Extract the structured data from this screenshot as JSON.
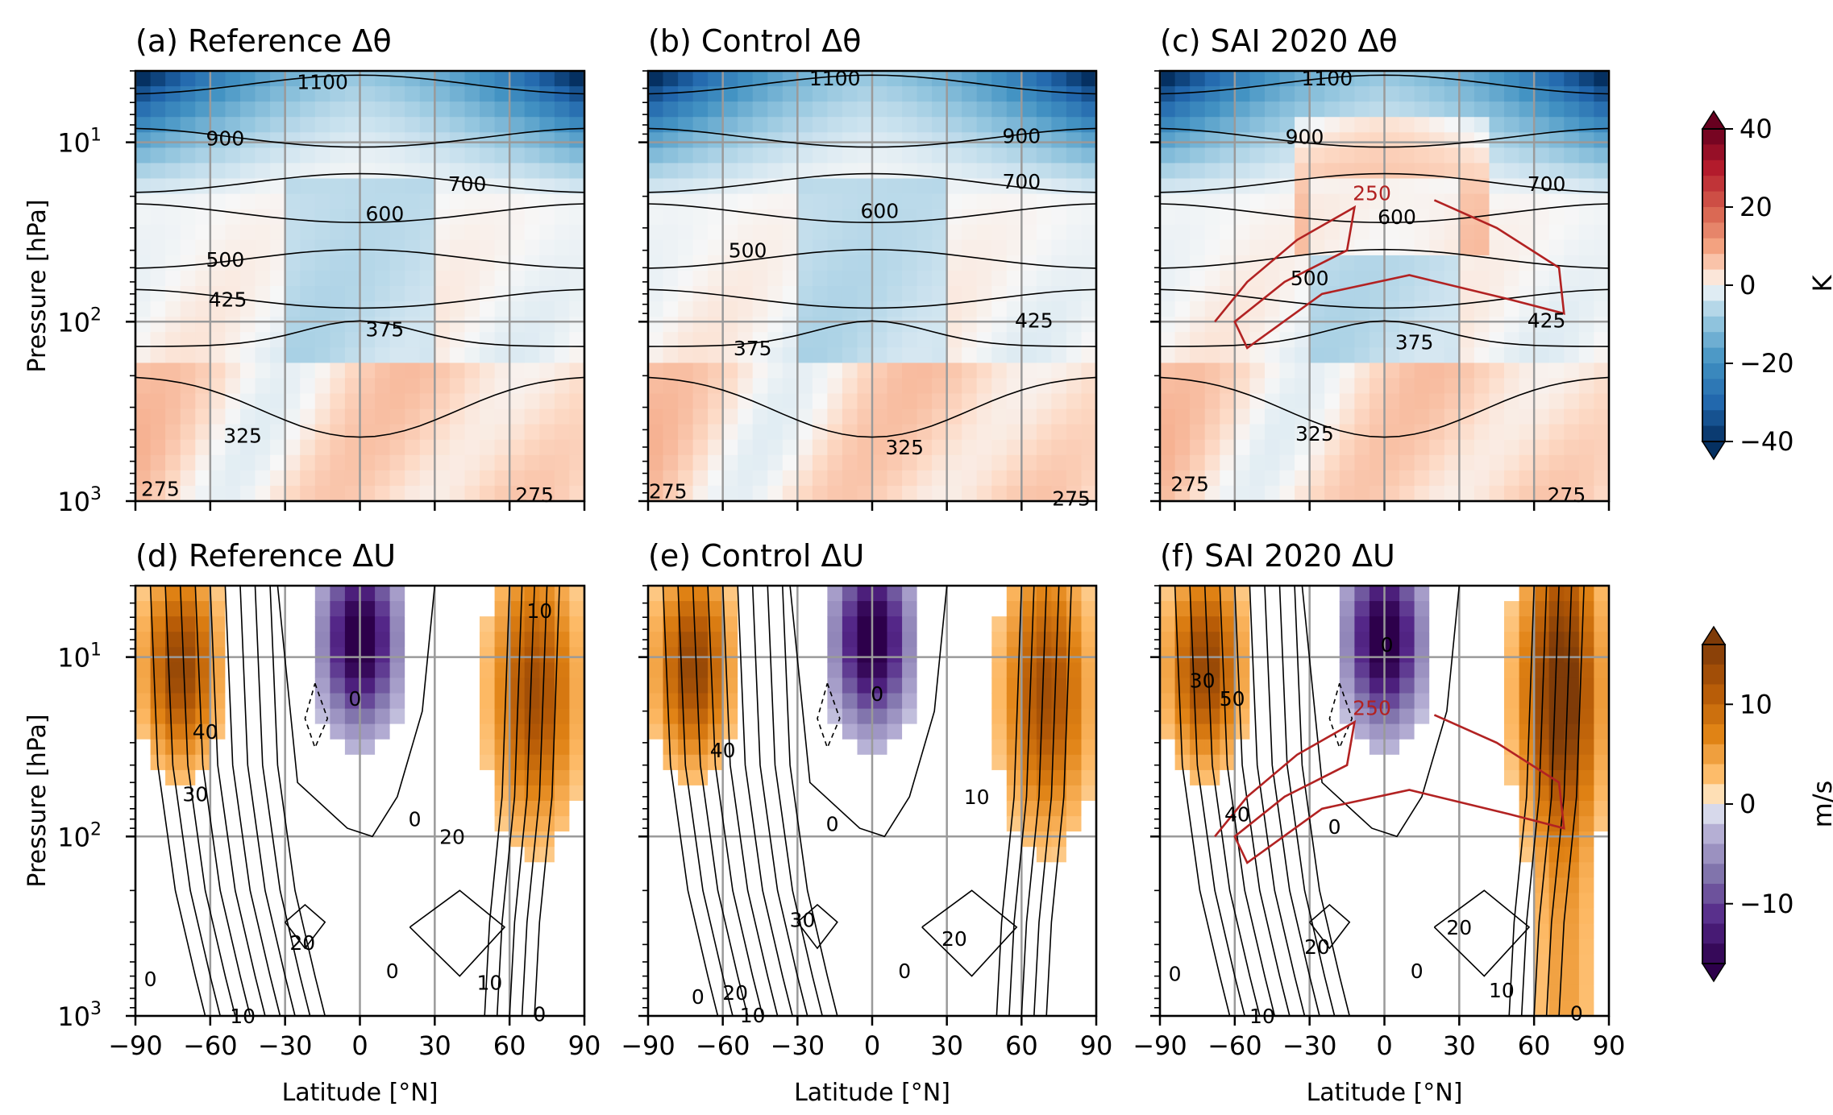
{
  "chart_data": {
    "type": "heatmap",
    "shared": {
      "xlabel": "Latitude [°N]",
      "ylabel": "Pressure [hPa]",
      "xlim": [
        -90,
        90
      ],
      "ylim": [
        1000,
        4
      ],
      "yscale": "log",
      "x_ticks": [
        -90,
        -60,
        -30,
        0,
        30,
        60,
        90
      ],
      "x_tick_labels": [
        "−90",
        "−60",
        "−30",
        "0",
        "30",
        "60",
        "90"
      ],
      "y_ticks": [
        10,
        100,
        1000
      ],
      "y_tick_labels": [
        {
          "base": "10",
          "exp": "1"
        },
        {
          "base": "10",
          "exp": "2"
        },
        {
          "base": "10",
          "exp": "3"
        }
      ],
      "grid": true
    },
    "colorbars": [
      {
        "unit": "K",
        "vmin": -40,
        "vmax": 40,
        "ticks": [
          40,
          20,
          0,
          -20,
          -40
        ],
        "tick_labels": [
          "40",
          "20",
          "0",
          "−20",
          "−40"
        ],
        "colormap": "RdBu_r",
        "extend": "both"
      },
      {
        "unit": "m/s",
        "vmin": -16,
        "vmax": 16,
        "ticks": [
          10,
          0,
          -10
        ],
        "tick_labels": [
          "10",
          "0",
          "−10"
        ],
        "colormap": "PuOr_r",
        "extend": "both"
      }
    ],
    "panels": [
      {
        "title": "(a) Reference Δθ",
        "field": "theta",
        "contour_labels": [
          {
            "text": "1100",
            "lat": -15,
            "p": 4.6
          },
          {
            "text": "900",
            "lat": -54,
            "p": 9.5
          },
          {
            "text": "700",
            "lat": 43,
            "p": 17
          },
          {
            "text": "600",
            "lat": 10,
            "p": 25
          },
          {
            "text": "500",
            "lat": -54,
            "p": 45
          },
          {
            "text": "425",
            "lat": -53,
            "p": 75
          },
          {
            "text": "375",
            "lat": 10,
            "p": 110
          },
          {
            "text": "325",
            "lat": -47,
            "p": 430
          },
          {
            "text": "275",
            "lat": -80,
            "p": 850
          },
          {
            "text": "275",
            "lat": 70,
            "p": 920
          }
        ],
        "special_contour": null
      },
      {
        "title": "(b) Control Δθ",
        "field": "theta",
        "contour_labels": [
          {
            "text": "1100",
            "lat": -15,
            "p": 4.4
          },
          {
            "text": "900",
            "lat": 60,
            "p": 9.2
          },
          {
            "text": "700",
            "lat": 60,
            "p": 16.5
          },
          {
            "text": "600",
            "lat": 3,
            "p": 24
          },
          {
            "text": "500",
            "lat": -50,
            "p": 40
          },
          {
            "text": "425",
            "lat": 65,
            "p": 98
          },
          {
            "text": "375",
            "lat": -48,
            "p": 140
          },
          {
            "text": "325",
            "lat": 13,
            "p": 500
          },
          {
            "text": "275",
            "lat": -82,
            "p": 880
          },
          {
            "text": "275",
            "lat": 80,
            "p": 965
          }
        ],
        "special_contour": null
      },
      {
        "title": "(c) SAI 2020 Δθ",
        "field": "theta",
        "contour_labels": [
          {
            "text": "1100",
            "lat": -23,
            "p": 4.4
          },
          {
            "text": "900",
            "lat": -32,
            "p": 9.3
          },
          {
            "text": "700",
            "lat": 65,
            "p": 17
          },
          {
            "text": "600",
            "lat": 5,
            "p": 26
          },
          {
            "text": "500",
            "lat": -30,
            "p": 57
          },
          {
            "text": "425",
            "lat": 65,
            "p": 98
          },
          {
            "text": "375",
            "lat": 12,
            "p": 130
          },
          {
            "text": "325",
            "lat": -28,
            "p": 420
          },
          {
            "text": "275",
            "lat": -78,
            "p": 800
          },
          {
            "text": "275",
            "lat": 73,
            "p": 920
          }
        ],
        "special_contour": {
          "label": "250",
          "color": "#b22222"
        }
      },
      {
        "title": "(d) Reference ΔU",
        "field": "u",
        "contour_labels": [
          {
            "text": "10",
            "lat": 72,
            "p": 5.5
          },
          {
            "text": "0",
            "lat": -2,
            "p": 17
          },
          {
            "text": "40",
            "lat": -62,
            "p": 26
          },
          {
            "text": "30",
            "lat": -66,
            "p": 58
          },
          {
            "text": "0",
            "lat": 22,
            "p": 80
          },
          {
            "text": "20",
            "lat": 37,
            "p": 100
          },
          {
            "text": "20",
            "lat": -23,
            "p": 390
          },
          {
            "text": "0",
            "lat": 13,
            "p": 560
          },
          {
            "text": "10",
            "lat": 52,
            "p": 650
          },
          {
            "text": "0",
            "lat": -84,
            "p": 620
          },
          {
            "text": "10",
            "lat": -47,
            "p": 1000
          },
          {
            "text": "0",
            "lat": 72,
            "p": 975
          }
        ],
        "special_contour": null
      },
      {
        "title": "(e) Control ΔU",
        "field": "u",
        "contour_labels": [
          {
            "text": "0",
            "lat": 2,
            "p": 16
          },
          {
            "text": "40",
            "lat": -60,
            "p": 33
          },
          {
            "text": "10",
            "lat": 42,
            "p": 60
          },
          {
            "text": "0",
            "lat": -16,
            "p": 85
          },
          {
            "text": "30",
            "lat": -28,
            "p": 290
          },
          {
            "text": "20",
            "lat": 33,
            "p": 370
          },
          {
            "text": "0",
            "lat": 13,
            "p": 560
          },
          {
            "text": "20",
            "lat": -55,
            "p": 740
          },
          {
            "text": "0",
            "lat": -70,
            "p": 780
          },
          {
            "text": "10",
            "lat": -48,
            "p": 990
          }
        ],
        "special_contour": null
      },
      {
        "title": "(f) SAI 2020 ΔU",
        "field": "u",
        "contour_labels": [
          {
            "text": "30",
            "lat": -73,
            "p": 13.5
          },
          {
            "text": "50",
            "lat": -61,
            "p": 17
          },
          {
            "text": "0",
            "lat": 1,
            "p": 8.5
          },
          {
            "text": "40",
            "lat": -59,
            "p": 75
          },
          {
            "text": "0",
            "lat": -20,
            "p": 88
          },
          {
            "text": "20",
            "lat": 30,
            "p": 320
          },
          {
            "text": "20",
            "lat": -27,
            "p": 410
          },
          {
            "text": "0",
            "lat": 13,
            "p": 560
          },
          {
            "text": "10",
            "lat": 47,
            "p": 720
          },
          {
            "text": "0",
            "lat": -84,
            "p": 580
          },
          {
            "text": "10",
            "lat": -49,
            "p": 1000
          },
          {
            "text": "0",
            "lat": 77,
            "p": 965
          }
        ],
        "special_contour": {
          "label": "250",
          "color": "#b22222"
        }
      }
    ]
  }
}
